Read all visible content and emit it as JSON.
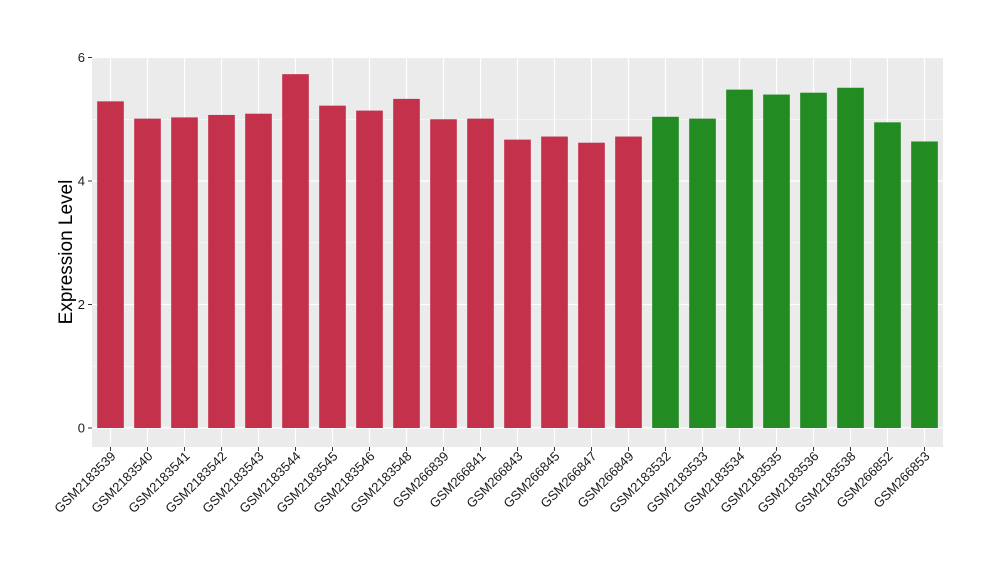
{
  "chart_data": {
    "type": "bar",
    "title": "",
    "xlabel": "",
    "ylabel": "Expression Level",
    "ylim": [
      0,
      6
    ],
    "yticks": [
      0,
      2,
      4,
      6
    ],
    "grid": true,
    "legend": "none",
    "categories": [
      "GSM2183539",
      "GSM2183540",
      "GSM2183541",
      "GSM2183542",
      "GSM2183543",
      "GSM2183544",
      "GSM2183545",
      "GSM2183546",
      "GSM2183548",
      "GSM266839",
      "GSM266841",
      "GSM266843",
      "GSM266845",
      "GSM266847",
      "GSM266849",
      "GSM2183532",
      "GSM2183533",
      "GSM2183534",
      "GSM2183535",
      "GSM2183536",
      "GSM2183538",
      "GSM266852",
      "GSM266853"
    ],
    "values": [
      5.29,
      5.01,
      5.03,
      5.07,
      5.09,
      5.73,
      5.22,
      5.14,
      5.33,
      5.0,
      5.01,
      4.67,
      4.72,
      4.62,
      4.72,
      5.04,
      5.01,
      5.48,
      5.4,
      5.43,
      5.51,
      4.95,
      4.64
    ],
    "bar_colors": [
      "#c4314b",
      "#c4314b",
      "#c4314b",
      "#c4314b",
      "#c4314b",
      "#c4314b",
      "#c4314b",
      "#c4314b",
      "#c4314b",
      "#c4314b",
      "#c4314b",
      "#c4314b",
      "#c4314b",
      "#c4314b",
      "#c4314b",
      "#228b22",
      "#228b22",
      "#228b22",
      "#228b22",
      "#228b22",
      "#228b22",
      "#228b22",
      "#228b22"
    ],
    "panel_color": "#ebebeb",
    "gridline_color": "#ffffff"
  }
}
